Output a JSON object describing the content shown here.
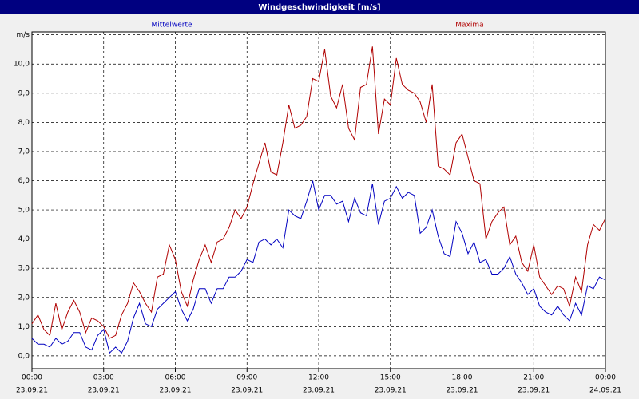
{
  "chart_data": {
    "type": "line",
    "title": "Windgeschwindigkeit [m/s]",
    "x": [
      0,
      0.25,
      0.5,
      0.75,
      1,
      1.25,
      1.5,
      1.75,
      2,
      2.25,
      2.5,
      2.75,
      3,
      3.25,
      3.5,
      3.75,
      4,
      4.25,
      4.5,
      4.75,
      5,
      5.25,
      5.5,
      5.75,
      6,
      6.25,
      6.5,
      6.75,
      7,
      7.25,
      7.5,
      7.75,
      8,
      8.25,
      8.5,
      8.75,
      9,
      9.25,
      9.5,
      9.75,
      10,
      10.25,
      10.5,
      10.75,
      11,
      11.25,
      11.5,
      11.75,
      12,
      12.25,
      12.5,
      12.75,
      13,
      13.25,
      13.5,
      13.75,
      14,
      14.25,
      14.5,
      14.75,
      15,
      15.25,
      15.5,
      15.75,
      16,
      16.25,
      16.5,
      16.75,
      17,
      17.25,
      17.5,
      17.75,
      18,
      18.25,
      18.5,
      18.75,
      19,
      19.25,
      19.5,
      19.75,
      20,
      20.25,
      20.5,
      20.75,
      21,
      21.25,
      21.5,
      21.75,
      22,
      22.25,
      22.5,
      22.75,
      23,
      23.25,
      23.5,
      23.75,
      24
    ],
    "series": [
      {
        "name": "Mittelwerte",
        "color": "#0000c0",
        "values": [
          0.6,
          0.4,
          0.4,
          0.3,
          0.6,
          0.4,
          0.5,
          0.8,
          0.8,
          0.3,
          0.2,
          0.7,
          0.9,
          0.1,
          0.3,
          0.1,
          0.5,
          1.3,
          1.8,
          1.1,
          1.0,
          1.6,
          1.8,
          2.0,
          2.2,
          1.6,
          1.2,
          1.6,
          2.3,
          2.3,
          1.8,
          2.3,
          2.3,
          2.7,
          2.7,
          2.9,
          3.3,
          3.2,
          3.9,
          4.0,
          3.8,
          4.0,
          3.7,
          5.0,
          4.8,
          4.7,
          5.3,
          6.0,
          5.0,
          5.5,
          5.5,
          5.2,
          5.3,
          4.6,
          5.4,
          4.9,
          4.8,
          5.9,
          4.5,
          5.3,
          5.4,
          5.8,
          5.4,
          5.6,
          5.5,
          4.2,
          4.4,
          5.0,
          4.1,
          3.5,
          3.4,
          4.6,
          4.2,
          3.5,
          3.9,
          3.2,
          3.3,
          2.8,
          2.8,
          3.0,
          3.4,
          2.8,
          2.5,
          2.1,
          2.3,
          1.7,
          1.5,
          1.4,
          1.7,
          1.4,
          1.2,
          1.8,
          1.4,
          2.4,
          2.3,
          2.7,
          2.6
        ]
      },
      {
        "name": "Maxima",
        "color": "#b00000",
        "values": [
          1.1,
          1.4,
          0.9,
          0.7,
          1.8,
          0.9,
          1.5,
          1.9,
          1.5,
          0.8,
          1.3,
          1.2,
          1.0,
          0.6,
          0.7,
          1.4,
          1.8,
          2.5,
          2.2,
          1.8,
          1.5,
          2.7,
          2.8,
          3.8,
          3.3,
          2.2,
          1.7,
          2.6,
          3.3,
          3.8,
          3.2,
          3.9,
          4.0,
          4.4,
          5.0,
          4.7,
          5.1,
          5.9,
          6.6,
          7.3,
          6.3,
          6.2,
          7.3,
          8.6,
          7.8,
          7.9,
          8.2,
          9.5,
          9.4,
          10.5,
          8.9,
          8.5,
          9.3,
          7.8,
          7.4,
          9.2,
          9.3,
          10.6,
          7.6,
          8.8,
          8.6,
          10.2,
          9.3,
          9.1,
          9.0,
          8.7,
          8.0,
          9.3,
          6.5,
          6.4,
          6.2,
          7.3,
          7.6,
          6.8,
          6.0,
          5.9,
          4.0,
          4.6,
          4.9,
          5.1,
          3.8,
          4.1,
          3.2,
          2.9,
          3.8,
          2.7,
          2.4,
          2.1,
          2.4,
          2.3,
          1.7,
          2.7,
          2.2,
          3.8,
          4.5,
          4.3,
          4.7
        ]
      }
    ],
    "xlim": [
      0,
      24
    ],
    "xticks": [
      {
        "value": 0,
        "label": "00:00",
        "date": "23.09.21"
      },
      {
        "value": 3,
        "label": "03:00",
        "date": "23.09.21"
      },
      {
        "value": 6,
        "label": "06:00",
        "date": "23.09.21"
      },
      {
        "value": 9,
        "label": "09:00",
        "date": "23.09.21"
      },
      {
        "value": 12,
        "label": "12:00",
        "date": "23.09.21"
      },
      {
        "value": 15,
        "label": "15:00",
        "date": "23.09.21"
      },
      {
        "value": 18,
        "label": "18:00",
        "date": "23.09.21"
      },
      {
        "value": 21,
        "label": "21:00",
        "date": "23.09.21"
      },
      {
        "value": 24,
        "label": "00:00",
        "date": "24.09.21"
      }
    ],
    "ylim": [
      -0.44,
      11.1
    ],
    "yticks": [
      {
        "value": 0,
        "label": "0,0"
      },
      {
        "value": 1,
        "label": "1,0"
      },
      {
        "value": 2,
        "label": "2,0"
      },
      {
        "value": 3,
        "label": "3,0"
      },
      {
        "value": 4,
        "label": "4,0"
      },
      {
        "value": 5,
        "label": "5,0"
      },
      {
        "value": 6,
        "label": "6,0"
      },
      {
        "value": 7,
        "label": "7,0"
      },
      {
        "value": 8,
        "label": "8,0"
      },
      {
        "value": 9,
        "label": "9,0"
      },
      {
        "value": 10,
        "label": "10,0"
      },
      {
        "value": 11,
        "label": "m/s"
      }
    ],
    "grid": true
  }
}
